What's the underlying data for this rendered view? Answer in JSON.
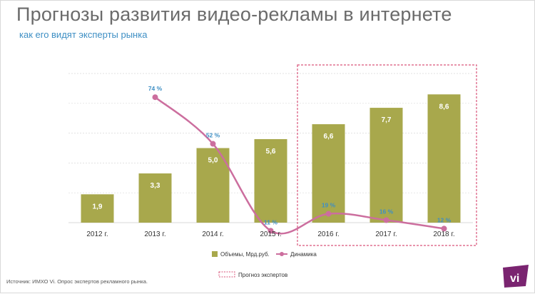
{
  "header": {
    "title": "Прогнозы развития видео-рекламы в интернете",
    "subtitle": "как его видят эксперты рынка"
  },
  "footer": {
    "source": "Источник: ИМХО Vi. Опрос экспертов рекламного рынка.",
    "logo_text": "vi"
  },
  "colors": {
    "bar": "#a8a84c",
    "line": "#cc6e9e",
    "line_label": "#3e8fc4",
    "forecast_box": "#d9547a",
    "grid": "#d9d9d9",
    "logo": "#7a2470"
  },
  "chart_data": {
    "type": "bar",
    "categories": [
      "2012 г.",
      "2013 г.",
      "2014 г.",
      "2015 г.",
      "2016 г.",
      "2017 г.",
      "2018 г."
    ],
    "series": [
      {
        "name": "Объемы, Мрд.руб.",
        "type": "bar",
        "values": [
          1.9,
          3.3,
          5.0,
          5.6,
          6.6,
          7.7,
          8.6
        ],
        "labels": [
          "1,9",
          "3,3",
          "5,0",
          "5,6",
          "6,6",
          "7,7",
          "8,6"
        ]
      },
      {
        "name": "Динамика",
        "type": "line",
        "values": [
          null,
          74,
          52,
          11,
          19,
          16,
          12
        ],
        "labels": [
          "",
          "74 %",
          "52 %",
          "11 %",
          "19 %",
          "16 %",
          "12 %"
        ]
      }
    ],
    "ylim": [
      0,
      10
    ],
    "ylim_secondary": [
      0,
      100
    ],
    "grid": true,
    "legend": [
      "Объемы, Мрд.руб.",
      "Динамика",
      "Прогноз экспертов"
    ],
    "legend_position": "bottom",
    "forecast_region": [
      "2016 г.",
      "2018 г."
    ],
    "forecast_label": "Прогноз экспертов"
  }
}
